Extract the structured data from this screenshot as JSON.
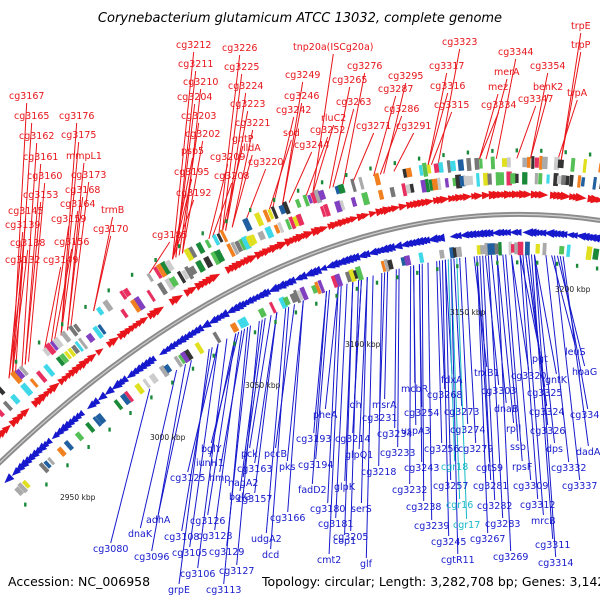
{
  "title": "Corynebacterium glutamicum ATCC 13032, complete genome",
  "footer": {
    "accession": "Accession: NC_006958",
    "topology": "Topology: circular; Length: 3,282,708 bp; Genes: 3,142"
  },
  "colors": {
    "forward": "#e8151a",
    "reverse": "#1619cc",
    "rna": "#17b8c8",
    "backbone": "#8c8c8c"
  },
  "ticks": [
    "2950 kbp",
    "3000 kbp",
    "3050 kbp",
    "3100 kbp",
    "3150 kbp",
    "3200 kbp"
  ],
  "labels_top": [
    {
      "t": "cg3212"
    },
    {
      "t": "cg3226"
    },
    {
      "t": "cg3211"
    },
    {
      "t": "cg3225"
    },
    {
      "t": "cg3210"
    },
    {
      "t": "cg3224"
    },
    {
      "t": "cg3204"
    },
    {
      "t": "cg3223"
    },
    {
      "t": "cg3203"
    },
    {
      "t": "cg3221"
    },
    {
      "t": "cg3202"
    },
    {
      "t": "gntP"
    },
    {
      "t": "psp5"
    },
    {
      "t": "cg3209"
    },
    {
      "t": "lldA"
    },
    {
      "t": "cg3220"
    },
    {
      "t": "cg3195"
    },
    {
      "t": "cg3208"
    },
    {
      "t": "cg3192"
    },
    {
      "t": "cg3185"
    },
    {
      "t": "tnp20a(ISCg20a)"
    },
    {
      "t": "cg3249"
    },
    {
      "t": "cg3276"
    },
    {
      "t": "cg3265"
    },
    {
      "t": "cg3295"
    },
    {
      "t": "cg3246"
    },
    {
      "t": "cg3287"
    },
    {
      "t": "cg3242"
    },
    {
      "t": "cg3263"
    },
    {
      "t": "rluC2"
    },
    {
      "t": "cg3286"
    },
    {
      "t": "sod"
    },
    {
      "t": "cg3252"
    },
    {
      "t": "cg3244"
    },
    {
      "t": "cg3271"
    },
    {
      "t": "cg3291"
    },
    {
      "t": "cg3323"
    },
    {
      "t": "cg3317"
    },
    {
      "t": "cg3316"
    },
    {
      "t": "cg3315"
    },
    {
      "t": "cg3344"
    },
    {
      "t": "merA"
    },
    {
      "t": "mez"
    },
    {
      "t": "cg3334"
    },
    {
      "t": "cg3347"
    },
    {
      "t": "trpE"
    },
    {
      "t": "trpP"
    },
    {
      "t": "cg3354"
    },
    {
      "t": "benK2"
    },
    {
      "t": "trpA"
    },
    {
      "t": "cg3167"
    },
    {
      "t": "cg3165"
    },
    {
      "t": "cg3176"
    },
    {
      "t": "cg3162"
    },
    {
      "t": "cg3175"
    },
    {
      "t": "mmpL1"
    },
    {
      "t": "cg3161"
    },
    {
      "t": "cg3160"
    },
    {
      "t": "cg3173"
    },
    {
      "t": "cg3168"
    },
    {
      "t": "cg3153"
    },
    {
      "t": "cg3164"
    },
    {
      "t": "cg3145"
    },
    {
      "t": "trmB"
    },
    {
      "t": "cg3139"
    },
    {
      "t": "cg3159"
    },
    {
      "t": "cg3170"
    },
    {
      "t": "cg3138"
    },
    {
      "t": "cg3156"
    },
    {
      "t": "cg3132"
    },
    {
      "t": "cg3149"
    }
  ],
  "labels_bottom": [
    {
      "t": "pheA"
    },
    {
      "t": "ldh"
    },
    {
      "t": "msrA"
    },
    {
      "t": "cg3231"
    },
    {
      "t": "cg3193"
    },
    {
      "t": "cg3214"
    },
    {
      "t": "cg3234"
    },
    {
      "t": "glpQ1"
    },
    {
      "t": "cg3233"
    },
    {
      "t": "cg3218"
    },
    {
      "t": "pck"
    },
    {
      "t": "pccB"
    },
    {
      "t": "cg3163"
    },
    {
      "t": "pks"
    },
    {
      "t": "cg3194"
    },
    {
      "t": "fadD2"
    },
    {
      "t": "glpK"
    },
    {
      "t": "cg3180"
    },
    {
      "t": "serS"
    },
    {
      "t": "cg3181"
    },
    {
      "t": "cg3205"
    },
    {
      "t": "cop1"
    },
    {
      "t": "cmt2"
    },
    {
      "t": "glf"
    },
    {
      "t": "bglY"
    },
    {
      "t": "nagA2"
    },
    {
      "t": "iunH1"
    },
    {
      "t": "cg3157"
    },
    {
      "t": "cg3166"
    },
    {
      "t": "cg3125"
    },
    {
      "t": "hmp"
    },
    {
      "t": "bglG"
    },
    {
      "t": "udgA2"
    },
    {
      "t": "adhA"
    },
    {
      "t": "cg3126"
    },
    {
      "t": "cg3128"
    },
    {
      "t": "dcd"
    },
    {
      "t": "dnaK"
    },
    {
      "t": "cg3108"
    },
    {
      "t": "cg3105"
    },
    {
      "t": "cg3129"
    },
    {
      "t": "cg3080"
    },
    {
      "t": "cg3096"
    },
    {
      "t": "cg3106"
    },
    {
      "t": "cg3127"
    },
    {
      "t": "grpE"
    },
    {
      "t": "cg3113"
    },
    {
      "t": "mcbR"
    },
    {
      "t": "fdxA"
    },
    {
      "t": "trxB1"
    },
    {
      "t": "cg3268"
    },
    {
      "t": "cg3303"
    },
    {
      "t": "cg3254"
    },
    {
      "t": "cg3273"
    },
    {
      "t": "uspA3"
    },
    {
      "t": "cg3274"
    },
    {
      "t": "cg3256"
    },
    {
      "t": "cg3279"
    },
    {
      "t": "cg3243"
    },
    {
      "t": "cgr18"
    },
    {
      "t": "cgtS9"
    },
    {
      "t": "cg3232"
    },
    {
      "t": "cg3257"
    },
    {
      "t": "cg3281"
    },
    {
      "t": "cg3238"
    },
    {
      "t": "cgr16"
    },
    {
      "t": "cg3282"
    },
    {
      "t": "cg3239"
    },
    {
      "t": "cgr17"
    },
    {
      "t": "cg3283"
    },
    {
      "t": "cg3245"
    },
    {
      "t": "cg3267"
    },
    {
      "t": "cgtR11"
    },
    {
      "t": "cg3269"
    },
    {
      "t": "dnaB"
    },
    {
      "t": "rpll"
    },
    {
      "t": "ssb"
    },
    {
      "t": "rpsF"
    },
    {
      "t": "cg3309"
    },
    {
      "t": "cg3312"
    },
    {
      "t": "mrcB"
    },
    {
      "t": "cg3311"
    },
    {
      "t": "cg3314"
    },
    {
      "t": "pgt"
    },
    {
      "t": "leuS"
    },
    {
      "t": "cg3320"
    },
    {
      "t": "gntK"
    },
    {
      "t": "hpaG"
    },
    {
      "t": "cg3325"
    },
    {
      "t": "cg3324"
    },
    {
      "t": "cg3343"
    },
    {
      "t": "cg3326"
    },
    {
      "t": "dps"
    },
    {
      "t": "dadA"
    },
    {
      "t": "cg3332"
    },
    {
      "t": "cg3337"
    }
  ]
}
